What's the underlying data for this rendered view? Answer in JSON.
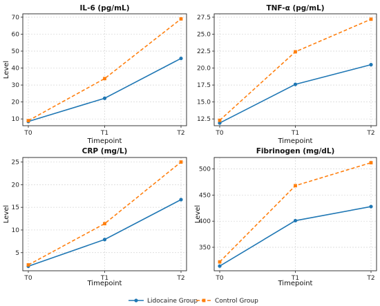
{
  "chart_data": [
    {
      "type": "line",
      "title": "IL-6 (pg/mL)",
      "xlabel": "Timepoint",
      "ylabel": "Level",
      "categories": [
        "T0",
        "T1",
        "T2"
      ],
      "ylim": [
        6,
        72
      ],
      "yticks": [
        10,
        20,
        30,
        40,
        50,
        60,
        70
      ],
      "grid": true,
      "series": [
        {
          "name": "Lidocaine Group",
          "values": [
            8.5,
            22.2,
            45.7
          ]
        },
        {
          "name": "Control Group",
          "values": [
            9.0,
            33.8,
            69.0
          ]
        }
      ]
    },
    {
      "type": "line",
      "title": "TNF-α (pg/mL)",
      "xlabel": "Timepoint",
      "ylabel": "",
      "categories": [
        "T0",
        "T1",
        "T2"
      ],
      "ylim": [
        11.5,
        28
      ],
      "yticks": [
        12.5,
        15.0,
        17.5,
        20.0,
        22.5,
        25.0,
        27.5
      ],
      "tickDecimals": 1,
      "grid": true,
      "series": [
        {
          "name": "Lidocaine Group",
          "values": [
            11.9,
            17.6,
            20.5
          ]
        },
        {
          "name": "Control Group",
          "values": [
            12.3,
            22.4,
            27.2
          ]
        }
      ]
    },
    {
      "type": "line",
      "title": "CRP (mg/L)",
      "xlabel": "Timepoint",
      "ylabel": "Level",
      "categories": [
        "T0",
        "T1",
        "T2"
      ],
      "ylim": [
        1,
        26
      ],
      "yticks": [
        5,
        10,
        15,
        20,
        25
      ],
      "grid": true,
      "series": [
        {
          "name": "Lidocaine Group",
          "values": [
            2.0,
            7.9,
            16.7
          ]
        },
        {
          "name": "Control Group",
          "values": [
            2.3,
            11.4,
            25.0
          ]
        }
      ]
    },
    {
      "type": "line",
      "title": "Fibrinogen (mg/dL)",
      "xlabel": "Timepoint",
      "ylabel": "Level",
      "categories": [
        "T0",
        "T1",
        "T2"
      ],
      "ylim": [
        305,
        522
      ],
      "yticks": [
        350,
        400,
        450,
        500
      ],
      "grid": true,
      "series": [
        {
          "name": "Lidocaine Group",
          "values": [
            314,
            401,
            428
          ]
        },
        {
          "name": "Control Group",
          "values": [
            322,
            468,
            512
          ]
        }
      ]
    }
  ],
  "legend": {
    "placement": "bottom-center",
    "entries": [
      {
        "name": "Lidocaine Group",
        "color": "#1f77b4",
        "marker": "circle",
        "style": "solid"
      },
      {
        "name": "Control Group",
        "color": "#ff7f0e",
        "marker": "square",
        "style": "dashed"
      }
    ]
  }
}
